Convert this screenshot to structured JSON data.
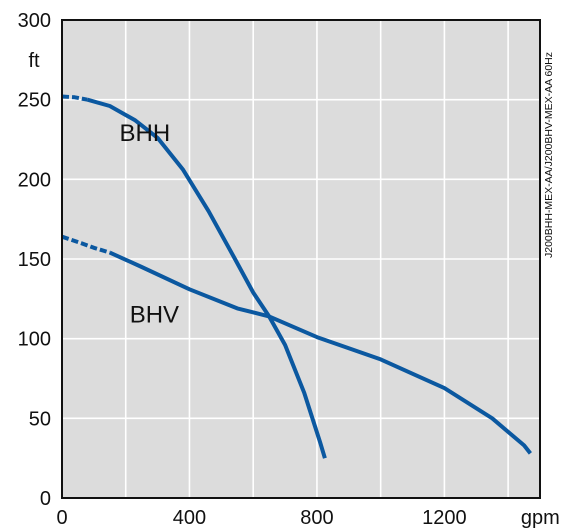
{
  "chart_data": {
    "type": "line",
    "xlim": [
      0,
      1500
    ],
    "ylim": [
      0,
      300
    ],
    "grid": true,
    "plot_background": "#dcdcdc",
    "line_color": "#0b58a0",
    "x_ticks": [
      {
        "value": 0,
        "label": "0"
      },
      {
        "value": 400,
        "label": "400"
      },
      {
        "value": 800,
        "label": "800"
      },
      {
        "value": 1200,
        "label": "1200"
      }
    ],
    "x_unit": "gpm",
    "y_ticks": [
      {
        "value": 0,
        "label": "0"
      },
      {
        "value": 50,
        "label": "50"
      },
      {
        "value": 100,
        "label": "100"
      },
      {
        "value": 150,
        "label": "150"
      },
      {
        "value": 200,
        "label": "200"
      },
      {
        "value": 250,
        "label": "250"
      },
      {
        "value": 300,
        "label": "300"
      }
    ],
    "y_unit": "ft",
    "series": [
      {
        "name": "BHH",
        "dashed_until": 80,
        "points": [
          [
            0,
            252
          ],
          [
            40,
            251.5
          ],
          [
            80,
            250
          ],
          [
            150,
            246
          ],
          [
            230,
            237
          ],
          [
            300,
            226
          ],
          [
            380,
            206
          ],
          [
            460,
            180
          ],
          [
            540,
            151
          ],
          [
            600,
            129
          ],
          [
            650,
            114
          ],
          [
            700,
            96
          ],
          [
            760,
            66
          ],
          [
            810,
            35
          ],
          [
            825,
            25
          ]
        ]
      },
      {
        "name": "BHV",
        "dashed_until": 150,
        "points": [
          [
            0,
            164
          ],
          [
            60,
            160
          ],
          [
            100,
            157
          ],
          [
            150,
            154
          ],
          [
            250,
            145
          ],
          [
            400,
            131
          ],
          [
            550,
            119
          ],
          [
            650,
            114
          ],
          [
            800,
            101
          ],
          [
            1000,
            87
          ],
          [
            1200,
            69
          ],
          [
            1350,
            50
          ],
          [
            1450,
            33
          ],
          [
            1470,
            28
          ]
        ]
      }
    ],
    "series_labels": [
      {
        "name": "BHH",
        "at": [
          260,
          224
        ]
      },
      {
        "name": "BHV",
        "at": [
          290,
          110
        ]
      }
    ],
    "side_note": "J200BHH-MEX-AA/J200BHV-MEX-AA 60Hz"
  }
}
